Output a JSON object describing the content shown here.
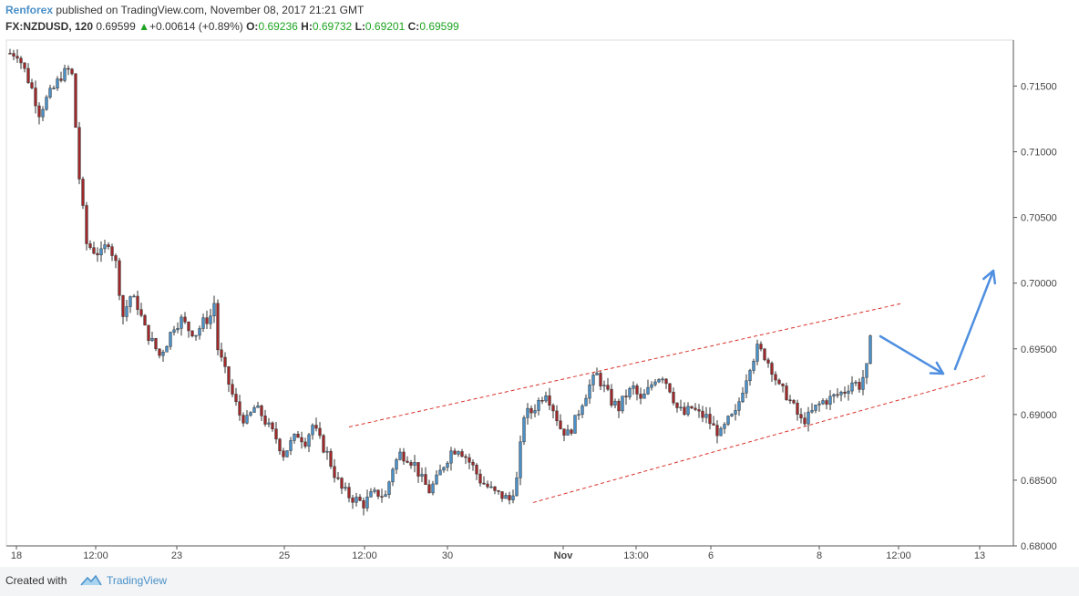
{
  "header": {
    "author": "Renforex",
    "published_text": "published on TradingView.com, November 08, 2017 21:21 GMT",
    "symbol": "FX:NZDUSD, 120",
    "last": "0.69599",
    "triangle": "▲",
    "change": "+0.00614 (+0.89%)",
    "open_label": "O:",
    "open": "0.69236",
    "high_label": "H:",
    "high": "0.69732",
    "low_label": "L:",
    "low": "0.69201",
    "close_label": "C:",
    "close": "0.69599"
  },
  "footer": {
    "created_with": "Created with",
    "brand": "TradingView"
  },
  "colors": {
    "up": "#4a90c8",
    "down": "#a0282a",
    "wick": "#333333",
    "channel": "#d9312b",
    "arrow": "#4f8fe0"
  },
  "chart_data": {
    "type": "candlestick",
    "y_axis": {
      "min": 0.68,
      "max": 0.7185,
      "ticks": [
        0.715,
        0.71,
        0.705,
        0.7,
        0.695,
        0.69,
        0.685,
        0.68
      ],
      "tick_labels": [
        "0.71500",
        "0.71000",
        "0.70500",
        "0.70000",
        "0.69500",
        "0.69000",
        "0.68500",
        "0.68000"
      ]
    },
    "x_axis": {
      "tick_labels": [
        "18",
        "12:00",
        "23",
        "25",
        "12:00",
        "30",
        "Nov",
        "13:00",
        "6",
        "12:00",
        "8",
        "12:00",
        "13"
      ],
      "bold": [
        false,
        false,
        false,
        false,
        false,
        false,
        true,
        false,
        false,
        false,
        false,
        false,
        false
      ]
    },
    "price_path": [
      [
        0,
        0.7175
      ],
      [
        3,
        0.7175
      ],
      [
        5,
        0.7162
      ],
      [
        7,
        0.7148
      ],
      [
        9,
        0.713
      ],
      [
        11,
        0.714
      ],
      [
        13,
        0.7148
      ],
      [
        15,
        0.7158
      ],
      [
        17,
        0.7162
      ],
      [
        18,
        0.7158
      ],
      [
        20,
        0.708
      ],
      [
        22,
        0.703
      ],
      [
        24,
        0.7025
      ],
      [
        26,
        0.7022
      ],
      [
        28,
        0.7032
      ],
      [
        30,
        0.7015
      ],
      [
        32,
        0.6975
      ],
      [
        34,
        0.699
      ],
      [
        36,
        0.6983
      ],
      [
        38,
        0.6965
      ],
      [
        40,
        0.6955
      ],
      [
        42,
        0.6945
      ],
      [
        44,
        0.6955
      ],
      [
        46,
        0.6968
      ],
      [
        48,
        0.6972
      ],
      [
        50,
        0.6965
      ],
      [
        52,
        0.6962
      ],
      [
        54,
        0.697
      ],
      [
        56,
        0.6975
      ],
      [
        57,
        0.6985
      ],
      [
        58,
        0.695
      ],
      [
        60,
        0.6932
      ],
      [
        62,
        0.6915
      ],
      [
        64,
        0.69
      ],
      [
        66,
        0.6895
      ],
      [
        68,
        0.6905
      ],
      [
        70,
        0.69
      ],
      [
        72,
        0.689
      ],
      [
        74,
        0.6882
      ],
      [
        76,
        0.687
      ],
      [
        78,
        0.6878
      ],
      [
        80,
        0.6885
      ],
      [
        82,
        0.688
      ],
      [
        84,
        0.6892
      ],
      [
        86,
        0.688
      ],
      [
        88,
        0.687
      ],
      [
        90,
        0.6855
      ],
      [
        92,
        0.6843
      ],
      [
        94,
        0.6838
      ],
      [
        96,
        0.6835
      ],
      [
        98,
        0.6832
      ],
      [
        100,
        0.6838
      ],
      [
        102,
        0.684
      ],
      [
        104,
        0.6838
      ],
      [
        106,
        0.686
      ],
      [
        108,
        0.687
      ],
      [
        110,
        0.6868
      ],
      [
        112,
        0.6862
      ],
      [
        114,
        0.685
      ],
      [
        116,
        0.6842
      ],
      [
        118,
        0.685
      ],
      [
        120,
        0.6862
      ],
      [
        122,
        0.6872
      ],
      [
        124,
        0.6875
      ],
      [
        126,
        0.6868
      ],
      [
        128,
        0.686
      ],
      [
        130,
        0.685
      ],
      [
        132,
        0.6845
      ],
      [
        134,
        0.684
      ],
      [
        136,
        0.6838
      ],
      [
        138,
        0.6835
      ],
      [
        140,
        0.685
      ],
      [
        142,
        0.69
      ],
      [
        144,
        0.6902
      ],
      [
        146,
        0.691
      ],
      [
        148,
        0.6918
      ],
      [
        150,
        0.6905
      ],
      [
        152,
        0.689
      ],
      [
        154,
        0.6885
      ],
      [
        156,
        0.6895
      ],
      [
        158,
        0.691
      ],
      [
        160,
        0.6922
      ],
      [
        162,
        0.693
      ],
      [
        164,
        0.692
      ],
      [
        166,
        0.691
      ],
      [
        168,
        0.6905
      ],
      [
        170,
        0.6915
      ],
      [
        172,
        0.692
      ],
      [
        174,
        0.691
      ],
      [
        176,
        0.6918
      ],
      [
        178,
        0.6928
      ],
      [
        180,
        0.693
      ],
      [
        182,
        0.692
      ],
      [
        184,
        0.6905
      ],
      [
        186,
        0.69
      ],
      [
        188,
        0.6905
      ],
      [
        190,
        0.69
      ],
      [
        192,
        0.6898
      ],
      [
        194,
        0.689
      ],
      [
        196,
        0.6885
      ],
      [
        198,
        0.6895
      ],
      [
        200,
        0.69
      ],
      [
        202,
        0.692
      ],
      [
        204,
        0.6938
      ],
      [
        206,
        0.695
      ],
      [
        208,
        0.6945
      ],
      [
        210,
        0.6935
      ],
      [
        212,
        0.692
      ],
      [
        214,
        0.6915
      ],
      [
        216,
        0.6905
      ],
      [
        218,
        0.6895
      ],
      [
        220,
        0.6898
      ],
      [
        222,
        0.6905
      ],
      [
        224,
        0.691
      ],
      [
        226,
        0.6912
      ],
      [
        228,
        0.6915
      ],
      [
        230,
        0.6918
      ],
      [
        232,
        0.6925
      ],
      [
        234,
        0.6922
      ],
      [
        236,
        0.6935
      ],
      [
        237,
        0.696
      ]
    ],
    "channel": {
      "upper": [
        [
          0.68905,
          11
        ],
        [
          0.69848,
          2
        ]
      ],
      "lower": [
        [
          0.6833,
          31
        ],
        [
          0.693,
          29
        ]
      ]
    },
    "annotations": {
      "arrow_down": "down-right",
      "arrow_up": "up-right"
    }
  }
}
